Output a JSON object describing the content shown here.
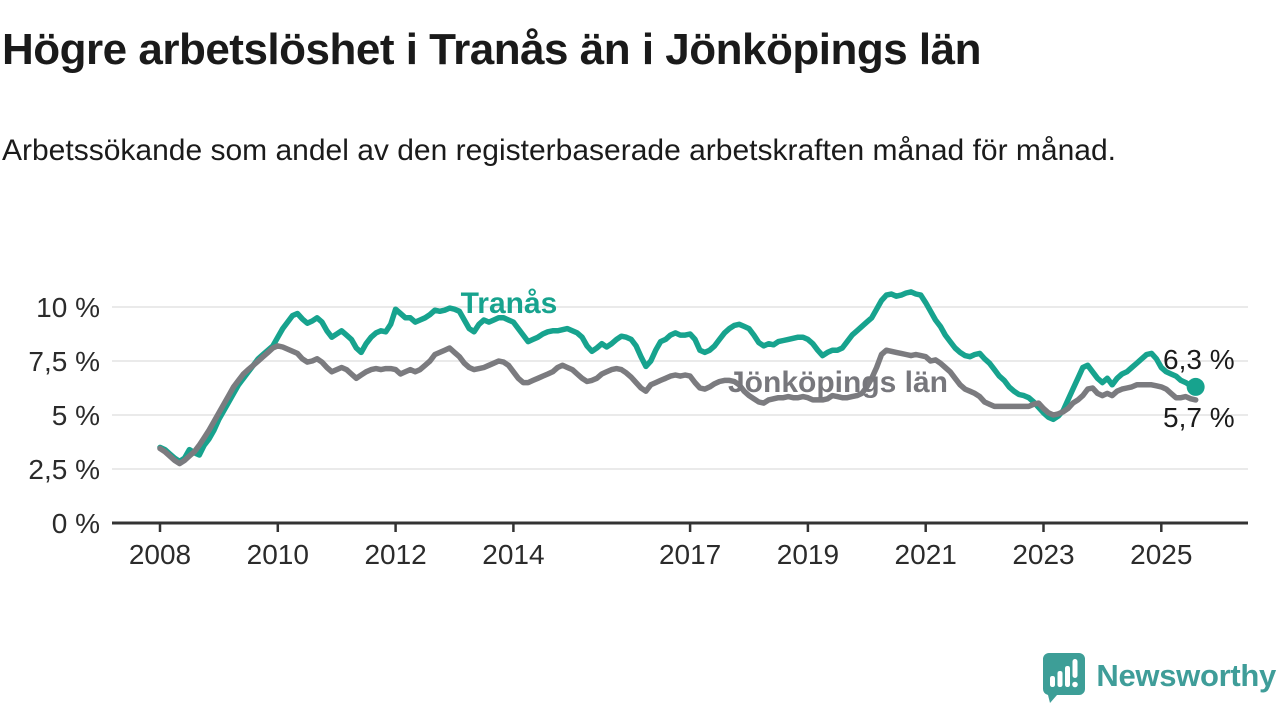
{
  "header": {
    "title": "Högre arbetslöshet i Tranås än i Jönköpings län",
    "subtitle": "Arbetssökande som andel av den registerbaserade arbetskraften månad för månad."
  },
  "chart_data": {
    "type": "line",
    "title": "Högre arbetslöshet i Tranås än i Jönköpings län",
    "subtitle": "Arbetssökande som andel av den registerbaserade arbetskraften månad för månad.",
    "grid": "horizontal-only",
    "legend_position": "inline-labels-on-lines",
    "x_axis": {
      "ticks": [
        2008,
        2010,
        2012,
        2014,
        2017,
        2019,
        2021,
        2023,
        2025
      ],
      "tick_labels": [
        "2008",
        "2010",
        "2012",
        "2014",
        "2017",
        "2019",
        "2021",
        "2023",
        "2025"
      ],
      "xlim_years": [
        2007.2,
        2026.5
      ]
    },
    "y_axis": {
      "ticks": [
        0,
        2.5,
        5,
        7.5,
        10
      ],
      "tick_labels": [
        "0 %",
        "2,5 %",
        "5 %",
        "7,5 %",
        "10 %"
      ],
      "unit": "%",
      "ylim": [
        0,
        11
      ]
    },
    "series": [
      {
        "name": "Tranås",
        "color": "#17a38e",
        "start_year": 2008,
        "points_per_year": 12,
        "end_value": 6.3,
        "end_label": "6,3 %",
        "end_marker": "dot",
        "values": [
          3.5,
          3.4,
          3.2,
          3.0,
          2.85,
          3.0,
          3.4,
          3.25,
          3.15,
          3.6,
          3.9,
          4.3,
          4.8,
          5.2,
          5.6,
          6.0,
          6.4,
          6.7,
          7.0,
          7.3,
          7.6,
          7.8,
          8.0,
          8.2,
          8.6,
          9.0,
          9.3,
          9.6,
          9.7,
          9.45,
          9.25,
          9.35,
          9.5,
          9.3,
          8.9,
          8.6,
          8.75,
          8.9,
          8.7,
          8.5,
          8.1,
          7.9,
          8.3,
          8.6,
          8.8,
          8.9,
          8.85,
          9.2,
          9.9,
          9.7,
          9.5,
          9.5,
          9.3,
          9.4,
          9.5,
          9.65,
          9.85,
          9.8,
          9.85,
          9.95,
          9.9,
          9.8,
          9.4,
          9.0,
          8.85,
          9.2,
          9.4,
          9.3,
          9.4,
          9.5,
          9.5,
          9.4,
          9.3,
          9.0,
          8.7,
          8.4,
          8.5,
          8.6,
          8.75,
          8.85,
          8.9,
          8.9,
          8.95,
          9.0,
          8.9,
          8.8,
          8.6,
          8.2,
          7.95,
          8.1,
          8.3,
          8.15,
          8.3,
          8.5,
          8.65,
          8.6,
          8.5,
          8.2,
          7.7,
          7.25,
          7.5,
          8.0,
          8.4,
          8.5,
          8.7,
          8.8,
          8.7,
          8.7,
          8.75,
          8.5,
          8.0,
          7.9,
          8.0,
          8.2,
          8.5,
          8.8,
          9.0,
          9.15,
          9.2,
          9.1,
          9.0,
          8.7,
          8.35,
          8.2,
          8.3,
          8.25,
          8.4,
          8.45,
          8.5,
          8.55,
          8.6,
          8.6,
          8.5,
          8.3,
          8.0,
          7.75,
          7.9,
          8.0,
          8.0,
          8.1,
          8.4,
          8.7,
          8.9,
          9.1,
          9.3,
          9.5,
          9.9,
          10.3,
          10.55,
          10.6,
          10.5,
          10.55,
          10.65,
          10.7,
          10.6,
          10.55,
          10.2,
          9.8,
          9.4,
          9.1,
          8.7,
          8.4,
          8.1,
          7.9,
          7.75,
          7.7,
          7.8,
          7.85,
          7.6,
          7.4,
          7.1,
          6.8,
          6.6,
          6.3,
          6.1,
          5.95,
          5.9,
          5.8,
          5.6,
          5.35,
          5.1,
          4.9,
          4.8,
          4.95,
          5.2,
          5.7,
          6.2,
          6.7,
          7.2,
          7.3,
          7.0,
          6.7,
          6.5,
          6.7,
          6.4,
          6.7,
          6.9,
          7.0,
          7.2,
          7.4,
          7.6,
          7.8,
          7.85,
          7.6,
          7.2,
          7.0,
          6.9,
          6.8,
          6.6,
          6.5,
          6.35,
          6.3
        ]
      },
      {
        "name": "Jönköpings län",
        "color": "#7b7b7f",
        "start_year": 2008,
        "points_per_year": 12,
        "end_value": 5.7,
        "end_label": "5,7 %",
        "end_marker": "none",
        "values": [
          3.45,
          3.3,
          3.1,
          2.9,
          2.75,
          2.9,
          3.1,
          3.3,
          3.6,
          3.95,
          4.3,
          4.7,
          5.1,
          5.5,
          5.9,
          6.3,
          6.6,
          6.9,
          7.1,
          7.3,
          7.5,
          7.7,
          7.9,
          8.1,
          8.2,
          8.15,
          8.05,
          7.95,
          7.85,
          7.6,
          7.45,
          7.5,
          7.6,
          7.45,
          7.2,
          7.0,
          7.1,
          7.2,
          7.1,
          6.9,
          6.7,
          6.85,
          7.0,
          7.1,
          7.15,
          7.1,
          7.15,
          7.15,
          7.1,
          6.9,
          7.0,
          7.1,
          7.0,
          7.1,
          7.3,
          7.5,
          7.8,
          7.9,
          8.0,
          8.1,
          7.9,
          7.7,
          7.4,
          7.2,
          7.1,
          7.15,
          7.2,
          7.3,
          7.4,
          7.5,
          7.45,
          7.3,
          7.0,
          6.7,
          6.5,
          6.5,
          6.6,
          6.7,
          6.8,
          6.9,
          7.0,
          7.2,
          7.3,
          7.2,
          7.1,
          6.9,
          6.7,
          6.55,
          6.6,
          6.7,
          6.9,
          7.0,
          7.1,
          7.15,
          7.1,
          6.95,
          6.75,
          6.5,
          6.25,
          6.1,
          6.4,
          6.5,
          6.6,
          6.7,
          6.8,
          6.85,
          6.8,
          6.85,
          6.8,
          6.5,
          6.25,
          6.2,
          6.3,
          6.45,
          6.55,
          6.6,
          6.6,
          6.55,
          6.4,
          6.1,
          5.9,
          5.75,
          5.6,
          5.55,
          5.7,
          5.75,
          5.8,
          5.8,
          5.85,
          5.8,
          5.8,
          5.85,
          5.8,
          5.7,
          5.7,
          5.7,
          5.75,
          5.9,
          5.85,
          5.8,
          5.8,
          5.85,
          5.9,
          6.0,
          6.3,
          6.7,
          7.2,
          7.8,
          8.0,
          7.95,
          7.9,
          7.85,
          7.8,
          7.75,
          7.8,
          7.75,
          7.7,
          7.5,
          7.55,
          7.4,
          7.2,
          7.0,
          6.7,
          6.4,
          6.2,
          6.1,
          6.0,
          5.85,
          5.6,
          5.5,
          5.4,
          5.4,
          5.4,
          5.4,
          5.4,
          5.4,
          5.4,
          5.4,
          5.5,
          5.55,
          5.3,
          5.1,
          5.0,
          5.05,
          5.15,
          5.3,
          5.55,
          5.7,
          5.9,
          6.2,
          6.25,
          6.0,
          5.9,
          6.0,
          5.9,
          6.1,
          6.2,
          6.25,
          6.3,
          6.4,
          6.4,
          6.4,
          6.4,
          6.35,
          6.3,
          6.2,
          6.0,
          5.8,
          5.8,
          5.85,
          5.75,
          5.7
        ]
      }
    ]
  },
  "footer": {
    "brand": "Newsworthy"
  }
}
